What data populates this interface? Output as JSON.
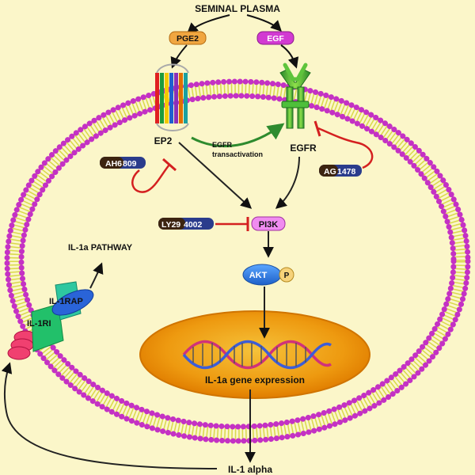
{
  "diagram": {
    "title": "SEMINAL PLASMA",
    "ligands": {
      "pge2": "PGE2",
      "egf": "EGF"
    },
    "receptors": {
      "ep2": "EP2",
      "egfr": "EGFR"
    },
    "transactivation": {
      "line1": "EGFR",
      "line2": "transactivation"
    },
    "inhibitors": {
      "ah6809": {
        "dark": "AH6",
        "light": "809"
      },
      "ag1478": {
        "dark": "AG",
        "light": "1478"
      },
      "ly294002": {
        "dark": "LY29",
        "light": "4002"
      }
    },
    "pi3k": "PI3K",
    "akt": "AKT",
    "phospho": "P",
    "nucleus_label": "IL-1a gene expression",
    "il1a_pathway": "IL-1a PATHWAY",
    "il1rap": "IL-1RAP",
    "il1ri": "IL-1RI",
    "il1_alpha": "IL-1 alpha"
  },
  "colors": {
    "background": "#fbf6c9",
    "membrane_bead": "#c431c4",
    "membrane_tail": "#d9d94a",
    "nucleus": "#f0a012",
    "pge2_box": "#f0a640",
    "egf_box": "#d23ad2",
    "pi3k_box": "#f08cf0",
    "inhibitor_dark": "#3c2410",
    "inhibitor_light": "#2a3c8c",
    "egfr_green": "#3fb23f",
    "inhibit_red": "#d42020",
    "activate_green": "#2e8b2e"
  }
}
